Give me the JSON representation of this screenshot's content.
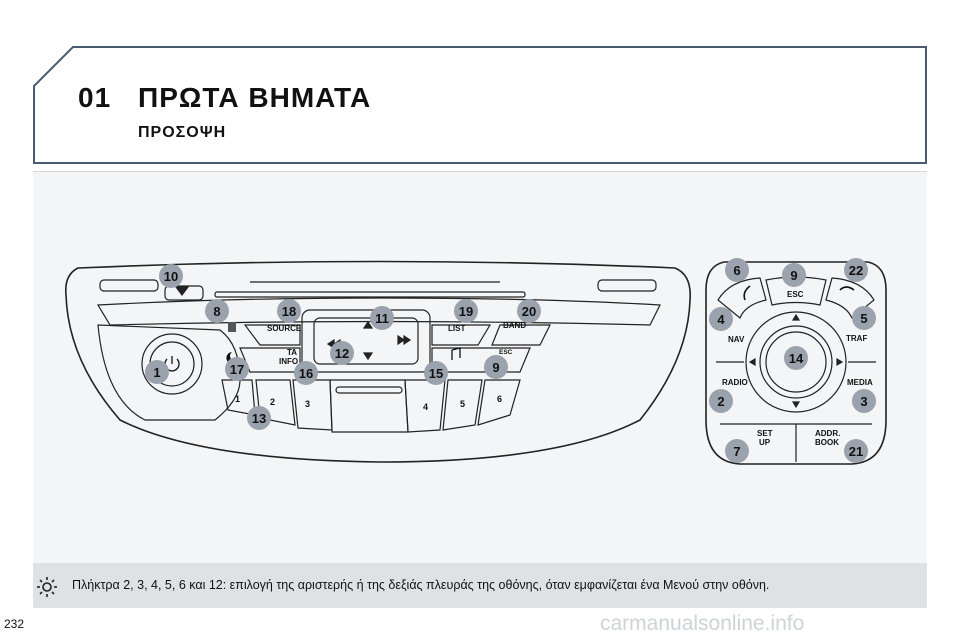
{
  "header": {
    "chapter_number": "01",
    "chapter_title": "ΠΡΩΤΑ ΒΗΜΑΤΑ",
    "section_title": "ΠΡΟΣΟΨΗ"
  },
  "front_panel": {
    "buttons": {
      "source": "SOURCE",
      "ta": "TA",
      "info": "INFO",
      "list": "LIST",
      "band": "BAND",
      "esc": "ESC",
      "presets": [
        "1",
        "2",
        "3",
        "4",
        "5",
        "6"
      ]
    },
    "callouts": [
      "10",
      "8",
      "18",
      "11",
      "19",
      "20",
      "1",
      "17",
      "12",
      "16",
      "15",
      "9",
      "13"
    ]
  },
  "steering_panel": {
    "buttons": {
      "esc": "ESC",
      "nav": "NAV",
      "traffic": "TRAF",
      "radio": "RADIO",
      "media": "MEDIA",
      "setup_line1": "SET",
      "setup_line2": "UP",
      "addr_line1": "ADDR.",
      "addr_line2": "BOOK"
    },
    "callouts": [
      "6",
      "9",
      "22",
      "4",
      "5",
      "14",
      "2",
      "3",
      "7",
      "21"
    ]
  },
  "note": {
    "text": "Πλήκτρα 2, 3, 4, 5, 6 και 12: επιλογή της αριστερής ή της δεξιάς πλευράς της οθόνης, όταν εμφανίζεται ένα Μενού στην οθόνη."
  },
  "page_number": "232",
  "watermark": "carmanualsonline.info",
  "colors": {
    "header_border": "#4a5a70",
    "callout_fill": "#9aa3ad",
    "panel_bg": "#f4f5f6",
    "note_bg": "#dfe2e5"
  }
}
